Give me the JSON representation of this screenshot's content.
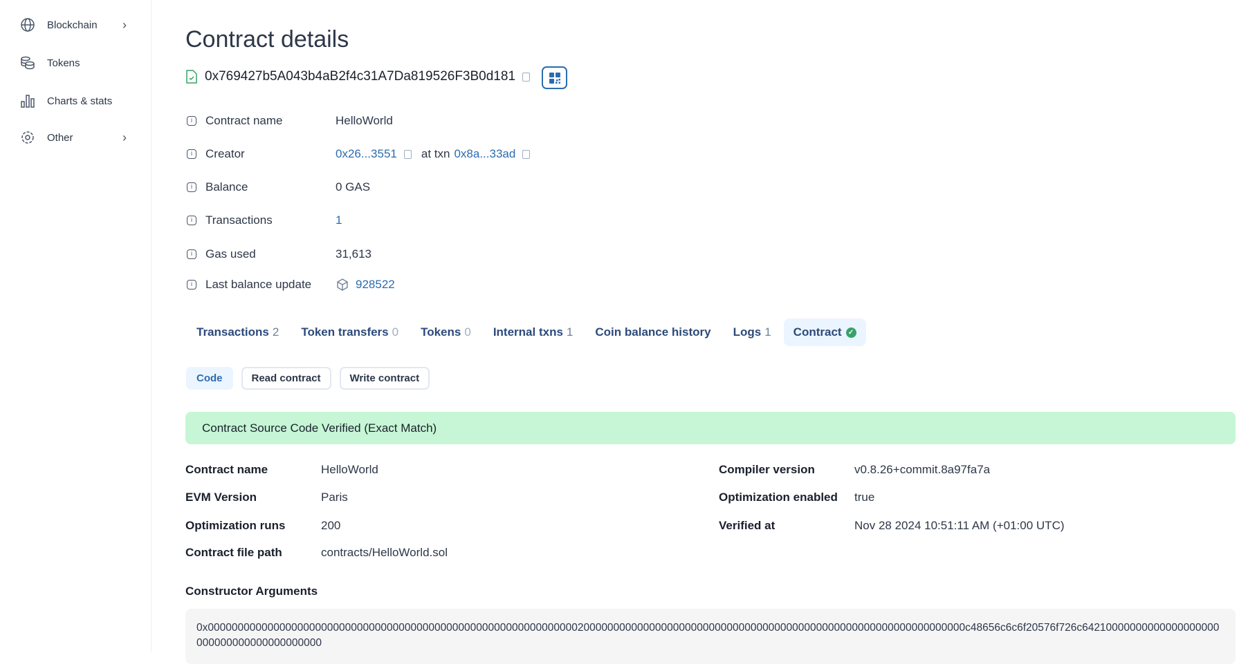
{
  "sidebar": {
    "items": [
      {
        "label": "Blockchain",
        "icon": "globe-icon",
        "chevron": true
      },
      {
        "label": "Tokens",
        "icon": "coins-icon"
      },
      {
        "label": "Charts & stats",
        "icon": "bar-chart-icon"
      },
      {
        "label": "Other",
        "icon": "gear-icon",
        "chevron": true
      }
    ]
  },
  "header": {
    "title": "Contract details",
    "address": "0x769427b5A043b4aB2f4c31A7Da819526F3B0d181"
  },
  "details": {
    "contract_name": {
      "label": "Contract name",
      "value": "HelloWorld"
    },
    "creator": {
      "label": "Creator",
      "address": "0x26...3551",
      "at_txn": "at txn",
      "txn": "0x8a...33ad"
    },
    "balance": {
      "label": "Balance",
      "value": "0 GAS"
    },
    "transactions": {
      "label": "Transactions",
      "value": "1"
    },
    "gas_used": {
      "label": "Gas used",
      "value": "31,613"
    },
    "last_balance_update": {
      "label": "Last balance update",
      "value": "928522"
    }
  },
  "tabs": [
    {
      "label": "Transactions",
      "count": "2"
    },
    {
      "label": "Token transfers",
      "count": "0"
    },
    {
      "label": "Tokens",
      "count": "0"
    },
    {
      "label": "Internal txns",
      "count": "1"
    },
    {
      "label": "Coin balance history"
    },
    {
      "label": "Logs",
      "count": "1"
    },
    {
      "label": "Contract",
      "active": true
    }
  ],
  "subtabs": [
    {
      "label": "Code",
      "active": true
    },
    {
      "label": "Read contract"
    },
    {
      "label": "Write contract"
    }
  ],
  "verified_banner": "Contract Source Code Verified (Exact Match)",
  "contract_info": {
    "left": [
      {
        "k": "Contract name",
        "v": "HelloWorld"
      },
      {
        "k": "EVM Version",
        "v": "Paris"
      },
      {
        "k": "Optimization runs",
        "v": "200"
      },
      {
        "k": "Contract file path",
        "v": "contracts/HelloWorld.sol"
      }
    ],
    "right": [
      {
        "k": "Compiler version",
        "v": "v0.8.26+commit.8a97fa7a"
      },
      {
        "k": "Optimization enabled",
        "v": "true"
      },
      {
        "k": "Verified at",
        "v": "Nov 28 2024 10:51:11 AM (+01:00 UTC)"
      }
    ]
  },
  "constructor_args": {
    "label": "Constructor Arguments",
    "value": "0x0000000000000000000000000000000000000000000000000000000000000020000000000000000000000000000000000000000000000000000000000000000c48656c6c6f20576f726c64210000000000000000000000000000000000000000"
  },
  "colors": {
    "link": "#2b6cb0",
    "banner": "#c6f6d5",
    "verified": "#38a169"
  }
}
